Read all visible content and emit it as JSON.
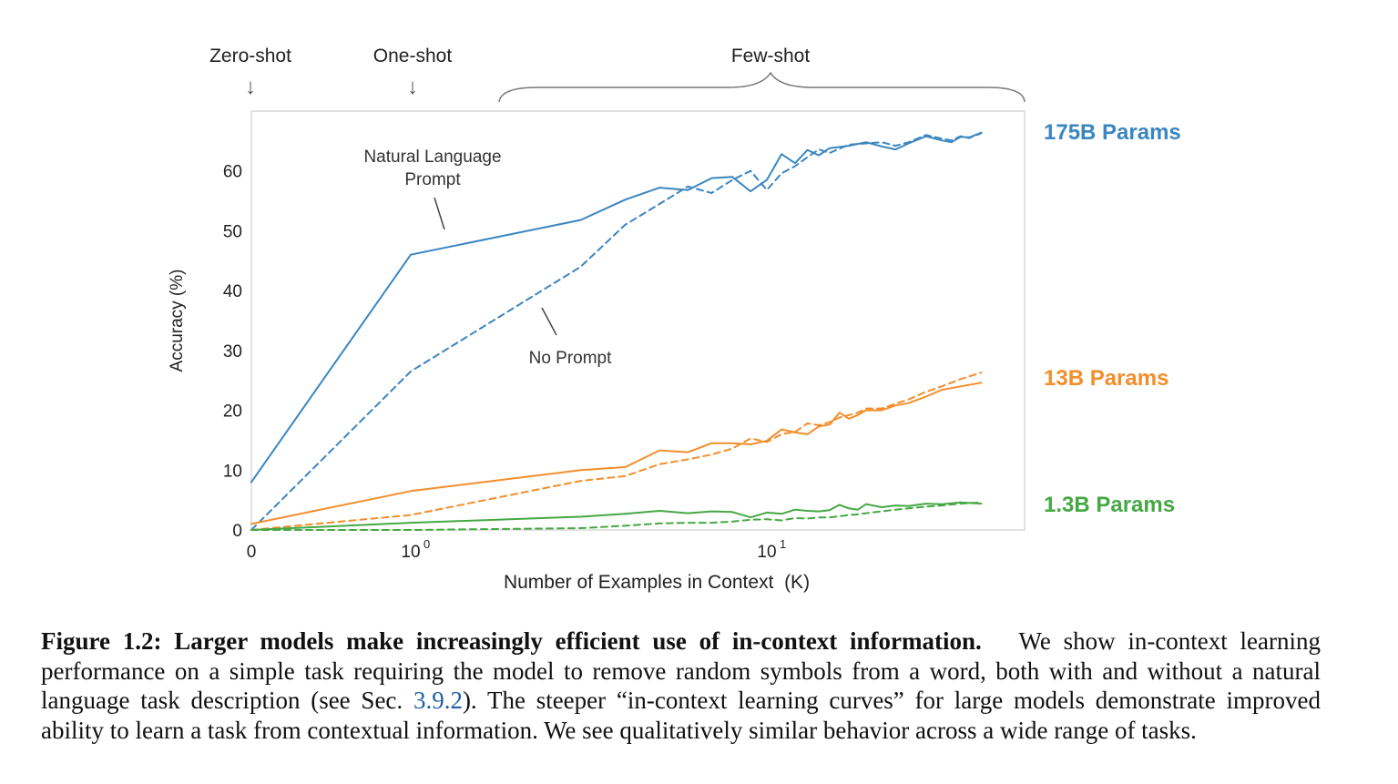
{
  "chart_data": {
    "type": "line",
    "xlabel": "Number of Examples in Context  (K)",
    "ylabel": "Accuracy (%)",
    "x_scale": "symlog",
    "xlim": [
      0,
      40
    ],
    "ylim": [
      0,
      70
    ],
    "yticks": [
      0,
      10,
      20,
      30,
      40,
      50,
      60
    ],
    "xtick_labels": [
      {
        "x": 0,
        "base": "0",
        "exp": ""
      },
      {
        "x": 1,
        "base": "10",
        "exp": "0"
      },
      {
        "x": 10,
        "base": "10",
        "exp": "1"
      }
    ],
    "header_labels": {
      "zero_shot": "Zero-shot",
      "one_shot": "One-shot",
      "few_shot": "Few-shot"
    },
    "annotations": {
      "natural_language_prompt": [
        "Natural Language",
        "Prompt"
      ],
      "no_prompt": "No Prompt"
    },
    "series": [
      {
        "name": "175B Params",
        "color": "#3a86c0",
        "prompt": "Natural Language Prompt",
        "dash": "solid",
        "points": [
          [
            0,
            8
          ],
          [
            1,
            46
          ],
          [
            3,
            51.8
          ],
          [
            4,
            55.2
          ],
          [
            5,
            57.2
          ],
          [
            6,
            56.8
          ],
          [
            7,
            58.8
          ],
          [
            8,
            59
          ],
          [
            9,
            56.6
          ],
          [
            10,
            58.5
          ],
          [
            11,
            62.8
          ],
          [
            12,
            61.3
          ],
          [
            13,
            63.5
          ],
          [
            14,
            62.6
          ],
          [
            15,
            63.8
          ],
          [
            17,
            64.2
          ],
          [
            19,
            64.8
          ],
          [
            21,
            64.1
          ],
          [
            23,
            63.6
          ],
          [
            25,
            64.6
          ],
          [
            28,
            65.8
          ],
          [
            31,
            65.1
          ],
          [
            33,
            64.8
          ],
          [
            35,
            65.7
          ],
          [
            37,
            65.6
          ],
          [
            40,
            66.4
          ]
        ]
      },
      {
        "name": "175B Params",
        "color": "#3a86c0",
        "prompt": "No Prompt",
        "dash": "dashed",
        "points": [
          [
            0,
            0
          ],
          [
            1,
            26.5
          ],
          [
            3,
            44
          ],
          [
            4,
            51
          ],
          [
            5,
            54.5
          ],
          [
            6,
            57.4
          ],
          [
            7,
            56.3
          ],
          [
            8,
            58.5
          ],
          [
            9,
            60
          ],
          [
            10,
            56.8
          ],
          [
            11,
            59.6
          ],
          [
            12,
            60.8
          ],
          [
            13,
            62.3
          ],
          [
            14,
            63.6
          ],
          [
            15,
            63
          ],
          [
            17,
            64.4
          ],
          [
            19,
            64.6
          ],
          [
            21,
            64.8
          ],
          [
            23,
            64.2
          ],
          [
            25,
            64.8
          ],
          [
            28,
            66
          ],
          [
            31,
            65.4
          ],
          [
            33,
            65.1
          ],
          [
            35,
            65.8
          ],
          [
            37,
            65.5
          ],
          [
            40,
            66.3
          ]
        ]
      },
      {
        "name": "13B Params",
        "color": "#f28e2b",
        "prompt": "Natural Language Prompt",
        "dash": "solid",
        "points": [
          [
            0,
            1
          ],
          [
            1,
            6.5
          ],
          [
            3,
            10
          ],
          [
            4,
            10.5
          ],
          [
            5,
            13.3
          ],
          [
            6,
            13
          ],
          [
            7,
            14.5
          ],
          [
            8,
            14.5
          ],
          [
            9,
            14.3
          ],
          [
            10,
            14.9
          ],
          [
            11,
            16.8
          ],
          [
            12,
            16.3
          ],
          [
            13,
            16
          ],
          [
            14,
            17.3
          ],
          [
            15,
            17.6
          ],
          [
            16,
            19.6
          ],
          [
            17,
            18.6
          ],
          [
            18,
            19.2
          ],
          [
            19,
            20
          ],
          [
            21,
            20
          ],
          [
            23,
            20.8
          ],
          [
            25,
            21.2
          ],
          [
            28,
            22.3
          ],
          [
            31,
            23.4
          ],
          [
            35,
            24
          ],
          [
            40,
            24.6
          ]
        ]
      },
      {
        "name": "13B Params",
        "color": "#f28e2b",
        "prompt": "No Prompt",
        "dash": "dashed",
        "points": [
          [
            0,
            0
          ],
          [
            1,
            2.5
          ],
          [
            3,
            8.2
          ],
          [
            4,
            9
          ],
          [
            5,
            11
          ],
          [
            6,
            11.8
          ],
          [
            7,
            12.6
          ],
          [
            8,
            13.6
          ],
          [
            9,
            15.3
          ],
          [
            10,
            14.7
          ],
          [
            11,
            16
          ],
          [
            12,
            16.4
          ],
          [
            13,
            17.8
          ],
          [
            14,
            17.5
          ],
          [
            15,
            18
          ],
          [
            16,
            18.8
          ],
          [
            17,
            19.2
          ],
          [
            18,
            19.6
          ],
          [
            19,
            20.3
          ],
          [
            21,
            20.3
          ],
          [
            23,
            21.1
          ],
          [
            25,
            21.8
          ],
          [
            28,
            23.1
          ],
          [
            31,
            24
          ],
          [
            35,
            25.2
          ],
          [
            40,
            26.3
          ]
        ]
      },
      {
        "name": "1.3B Params",
        "color": "#45a843",
        "prompt": "Natural Language Prompt",
        "dash": "solid",
        "points": [
          [
            0,
            0
          ],
          [
            1,
            1.2
          ],
          [
            3,
            2.2
          ],
          [
            4,
            2.7
          ],
          [
            5,
            3.2
          ],
          [
            6,
            2.8
          ],
          [
            7,
            3.1
          ],
          [
            8,
            3
          ],
          [
            9,
            2.1
          ],
          [
            10,
            2.9
          ],
          [
            11,
            2.7
          ],
          [
            12,
            3.4
          ],
          [
            13,
            3.2
          ],
          [
            14,
            3.1
          ],
          [
            15,
            3.3
          ],
          [
            16,
            4.2
          ],
          [
            17,
            3.6
          ],
          [
            18,
            3.4
          ],
          [
            19,
            4.3
          ],
          [
            21,
            3.8
          ],
          [
            23,
            4.1
          ],
          [
            25,
            4
          ],
          [
            28,
            4.4
          ],
          [
            31,
            4.3
          ],
          [
            35,
            4.6
          ],
          [
            40,
            4.4
          ]
        ]
      },
      {
        "name": "1.3B Params",
        "color": "#45a843",
        "prompt": "No Prompt",
        "dash": "dashed",
        "points": [
          [
            0,
            0
          ],
          [
            1,
            0
          ],
          [
            3,
            0.3
          ],
          [
            4,
            0.7
          ],
          [
            5,
            1.1
          ],
          [
            6,
            1.2
          ],
          [
            7,
            1.2
          ],
          [
            8,
            1.4
          ],
          [
            9,
            1.7
          ],
          [
            10,
            1.8
          ],
          [
            11,
            1.6
          ],
          [
            12,
            2
          ],
          [
            13,
            1.9
          ],
          [
            14,
            2.1
          ],
          [
            15,
            2.1
          ],
          [
            16,
            2.3
          ],
          [
            17,
            2.5
          ],
          [
            18,
            2.6
          ],
          [
            19,
            2.8
          ],
          [
            21,
            3.1
          ],
          [
            23,
            3.4
          ],
          [
            25,
            3.6
          ],
          [
            28,
            3.9
          ],
          [
            31,
            4.1
          ],
          [
            35,
            4.4
          ],
          [
            40,
            4.6
          ]
        ]
      }
    ]
  },
  "caption": {
    "bold": "Figure 1.2: Larger models make increasingly efficient use of in-context information.",
    "text_before_ref": "We show in-context learning performance on a simple task requiring the model to remove random symbols from a word, both with and without a natural language task description (see Sec.",
    "ref": "3.9.2",
    "text_after_ref": "). The steeper “in-context learning curves” for large models demonstrate improved ability to learn a task from contextual information. We see qualitatively similar behavior across a wide range of tasks."
  }
}
